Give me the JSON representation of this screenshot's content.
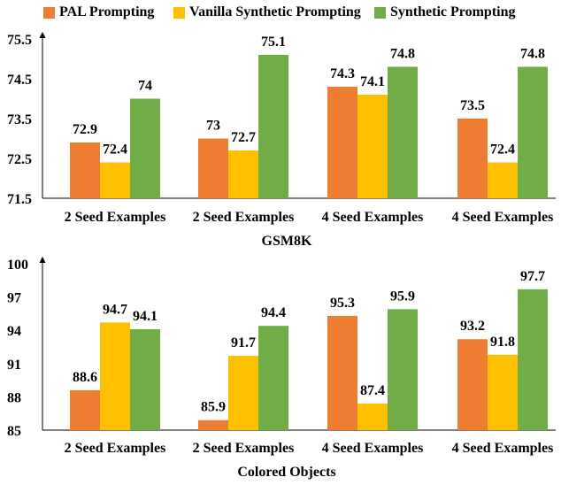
{
  "legend": [
    {
      "label": "PAL Prompting",
      "color": "#ED7D31"
    },
    {
      "label": "Vanilla Synthetic Prompting",
      "color": "#FFC000"
    },
    {
      "label": "Synthetic Prompting",
      "color": "#70AD47"
    }
  ],
  "chart_data": [
    {
      "type": "bar",
      "title": "GSM8K",
      "categories": [
        "2 Seed Examples",
        "2 Seed Examples",
        "4 Seed Examples",
        "4 Seed Examples"
      ],
      "series": [
        {
          "name": "PAL Prompting",
          "values": [
            72.9,
            73,
            74.3,
            73.5
          ]
        },
        {
          "name": "Vanilla Synthetic Prompting",
          "values": [
            72.4,
            72.7,
            74.1,
            72.4
          ]
        },
        {
          "name": "Synthetic Prompting",
          "values": [
            74,
            75.1,
            74.8,
            74.8
          ]
        }
      ],
      "ylim": [
        71.5,
        75.5
      ],
      "yticks": [
        "71.5",
        "72.5",
        "73.5",
        "74.5",
        "75.5"
      ],
      "grid": false,
      "legend_position": "top"
    },
    {
      "type": "bar",
      "title": "Colored Objects",
      "categories": [
        "2 Seed Examples",
        "2 Seed Examples",
        "4 Seed Examples",
        "4 Seed Examples"
      ],
      "series": [
        {
          "name": "PAL Prompting",
          "values": [
            88.6,
            85.9,
            95.3,
            93.2
          ]
        },
        {
          "name": "Vanilla Synthetic Prompting",
          "values": [
            94.7,
            91.7,
            87.4,
            91.8
          ]
        },
        {
          "name": "Synthetic Prompting",
          "values": [
            94.1,
            94.4,
            95.9,
            97.7
          ]
        }
      ],
      "ylim": [
        85,
        100
      ],
      "yticks": [
        "85",
        "88",
        "91",
        "94",
        "97",
        "100"
      ],
      "grid": false,
      "legend_position": "top"
    }
  ]
}
